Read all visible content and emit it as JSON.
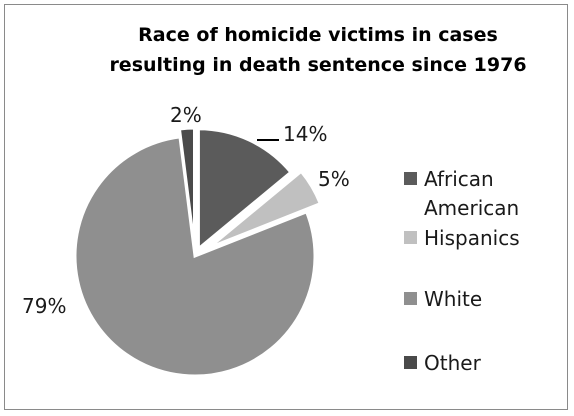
{
  "chart_data": {
    "type": "pie",
    "title": [
      "Race of homicide victims in cases",
      "resulting in death sentence since 1976"
    ],
    "categories": [
      "African American",
      "Hispanics",
      "White",
      "Other"
    ],
    "values": [
      14,
      5,
      79,
      2
    ],
    "value_labels": [
      "14%",
      "5%",
      "79%",
      "2%"
    ],
    "legend_lines": [
      [
        "African",
        "American"
      ],
      [
        "Hispanics"
      ],
      [
        "White"
      ],
      [
        "Other"
      ]
    ],
    "colors": [
      "#5b5b5b",
      "#c0c0c0",
      "#8f8f8f",
      "#4a4a4a"
    ],
    "legend_placement": "right",
    "exploded": true,
    "start_angle_deg": 0,
    "direction": "clockwise"
  }
}
